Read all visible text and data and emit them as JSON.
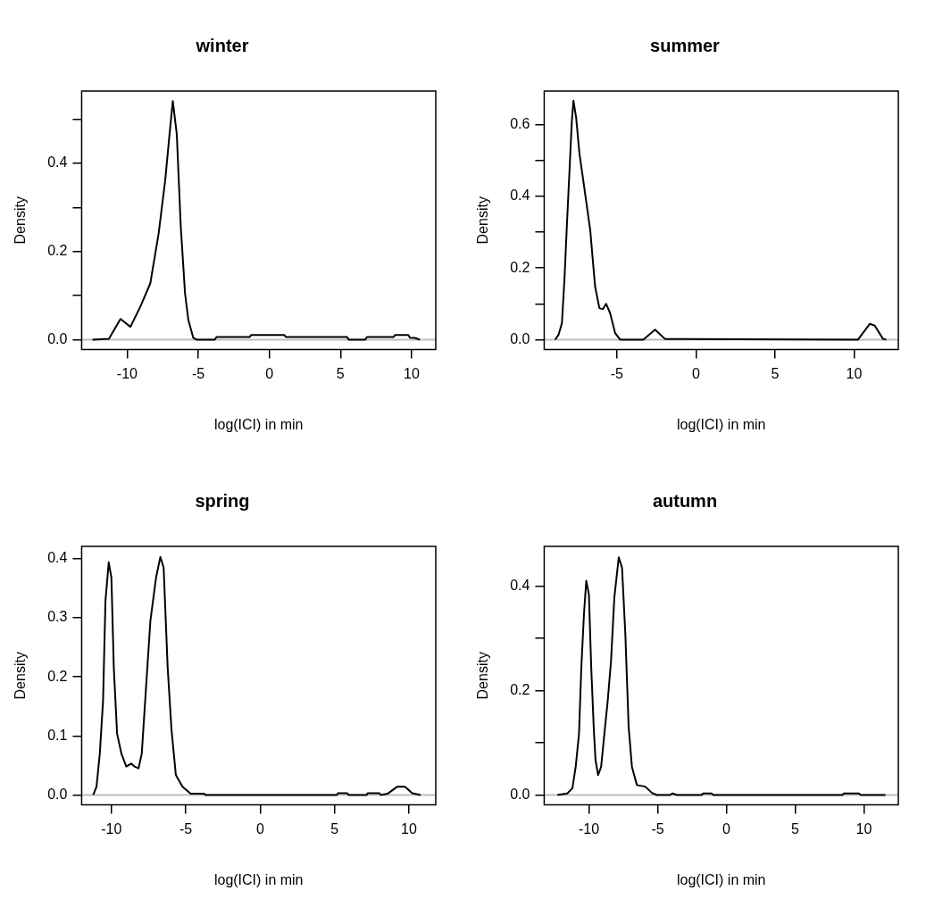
{
  "chart_data": [
    {
      "type": "line",
      "title": "winter",
      "xlabel": "log(ICI) in min",
      "ylabel": "Density",
      "color": "#000000",
      "x": [
        -12.44,
        -11.28,
        -10.47,
        -9.77,
        -9.07,
        -8.37,
        -7.79,
        -7.33,
        -7.02,
        -6.79,
        -6.51,
        -6.23,
        -5.93,
        -5.7,
        -5.35,
        -5.12,
        -3.84,
        -3.72,
        -1.4,
        -1.28,
        1.05,
        1.16,
        5.47,
        5.58,
        6.74,
        6.86,
        8.72,
        8.84,
        9.77,
        9.88,
        10.23,
        10.58
      ],
      "values": [
        0,
        0.002,
        0.047,
        0.029,
        0.075,
        0.128,
        0.24,
        0.36,
        0.466,
        0.541,
        0.466,
        0.256,
        0.105,
        0.045,
        0.004,
        0,
        0,
        0.006,
        0.006,
        0.0105,
        0.0105,
        0.006,
        0.006,
        0,
        0,
        0.006,
        0.006,
        0.0105,
        0.0105,
        0.0045,
        0.004,
        0
      ],
      "xlim": [
        -13.2,
        11.7
      ],
      "ylim": [
        -0.0226,
        0.564
      ],
      "xticks": [
        -10,
        -5,
        0,
        5,
        10
      ],
      "yticks": [
        {
          "value": 0,
          "label": "0.0"
        },
        {
          "value": 0.1,
          "label": null
        },
        {
          "value": 0.2,
          "label": "0.2"
        },
        {
          "value": 0.3,
          "label": null
        },
        {
          "value": 0.4,
          "label": "0.4"
        },
        {
          "value": 0.5,
          "label": null
        }
      ],
      "ref_lines": [
        {
          "axis": "y",
          "value": 0,
          "color": "#bebebe"
        }
      ]
    },
    {
      "type": "line",
      "title": "summer",
      "xlabel": "log(ICI) in min",
      "ylabel": "Density",
      "color": "#000000",
      "x": [
        -8.91,
        -8.69,
        -8.48,
        -8.32,
        -8.17,
        -8.0,
        -7.85,
        -7.75,
        -7.58,
        -7.37,
        -7.01,
        -6.69,
        -6.38,
        -6.11,
        -5.89,
        -5.68,
        -5.43,
        -5.12,
        -4.8,
        -3.33,
        -2.59,
        -1.96,
        10.25,
        10.99,
        11.31,
        11.83,
        12.04
      ],
      "values": [
        0,
        0.014,
        0.046,
        0.167,
        0.315,
        0.472,
        0.611,
        0.667,
        0.62,
        0.519,
        0.407,
        0.306,
        0.148,
        0.088,
        0.085,
        0.1,
        0.074,
        0.019,
        0,
        0,
        0.028,
        0.002,
        0,
        0.044,
        0.039,
        0.002,
        0
      ],
      "xlim": [
        -9.6,
        12.8
      ],
      "ylim": [
        -0.0278,
        0.694
      ],
      "xticks": [
        -5,
        0,
        5,
        10
      ],
      "yticks": [
        {
          "value": 0,
          "label": "0.0"
        },
        {
          "value": 0.1,
          "label": null
        },
        {
          "value": 0.2,
          "label": "0.2"
        },
        {
          "value": 0.3,
          "label": null
        },
        {
          "value": 0.4,
          "label": "0.4"
        },
        {
          "value": 0.5,
          "label": null
        },
        {
          "value": 0.6,
          "label": "0.6"
        }
      ],
      "ref_lines": [
        {
          "axis": "y",
          "value": 0,
          "color": "#bebebe"
        }
      ]
    },
    {
      "type": "line",
      "title": "spring",
      "xlabel": "log(ICI) in min",
      "ylabel": "Density",
      "color": "#000000",
      "x": [
        -11.22,
        -11.0,
        -10.78,
        -10.56,
        -10.4,
        -10.18,
        -10.0,
        -9.84,
        -9.62,
        -9.33,
        -9.0,
        -8.67,
        -8.44,
        -8.18,
        -7.96,
        -7.67,
        -7.38,
        -7.0,
        -6.71,
        -6.49,
        -6.22,
        -5.96,
        -5.67,
        -5.22,
        -4.67,
        -3.78,
        -3.67,
        5.16,
        5.22,
        5.84,
        5.96,
        7.16,
        7.22,
        8.0,
        8.11,
        8.56,
        9.22,
        9.73,
        10.22,
        10.78
      ],
      "values": [
        0,
        0.014,
        0.07,
        0.16,
        0.329,
        0.394,
        0.368,
        0.216,
        0.104,
        0.07,
        0.048,
        0.053,
        0.048,
        0.045,
        0.07,
        0.183,
        0.295,
        0.368,
        0.403,
        0.385,
        0.216,
        0.11,
        0.034,
        0.014,
        0.002,
        0.002,
        0,
        0,
        0.003,
        0.003,
        0,
        0,
        0.003,
        0.003,
        0,
        0.002,
        0.014,
        0.014,
        0.003,
        0
      ],
      "xlim": [
        -12,
        11.8
      ],
      "ylim": [
        -0.0169,
        0.421
      ],
      "xticks": [
        -10,
        -5,
        0,
        5,
        10
      ],
      "yticks": [
        {
          "value": 0,
          "label": "0.0"
        },
        {
          "value": 0.1,
          "label": "0.1"
        },
        {
          "value": 0.2,
          "label": "0.2"
        },
        {
          "value": 0.3,
          "label": "0.3"
        },
        {
          "value": 0.4,
          "label": "0.4"
        }
      ],
      "ref_lines": [
        {
          "axis": "y",
          "value": 0,
          "color": "#bebebe"
        }
      ]
    },
    {
      "type": "line",
      "title": "autumn",
      "xlabel": "log(ICI) in min",
      "ylabel": "Density",
      "color": "#000000",
      "x": [
        -12.29,
        -11.57,
        -11.2,
        -10.96,
        -10.72,
        -10.55,
        -10.36,
        -10.19,
        -10.0,
        -9.83,
        -9.64,
        -9.52,
        -9.33,
        -9.11,
        -8.92,
        -8.63,
        -8.39,
        -8.15,
        -7.83,
        -7.59,
        -7.35,
        -7.11,
        -6.87,
        -6.51,
        -5.9,
        -5.42,
        -5.06,
        -4.1,
        -3.9,
        -3.61,
        -1.81,
        -1.69,
        -1.08,
        -0.96,
        8.43,
        8.55,
        9.64,
        9.76,
        11.57
      ],
      "values": [
        0,
        0.003,
        0.013,
        0.054,
        0.117,
        0.244,
        0.346,
        0.41,
        0.384,
        0.244,
        0.124,
        0.067,
        0.038,
        0.054,
        0.105,
        0.181,
        0.257,
        0.378,
        0.455,
        0.435,
        0.308,
        0.13,
        0.054,
        0.019,
        0.016,
        0.004,
        0,
        0,
        0.003,
        0,
        0,
        0.003,
        0.003,
        0,
        0,
        0.003,
        0.003,
        0,
        0
      ],
      "xlim": [
        -13.25,
        12.5
      ],
      "ylim": [
        -0.019,
        0.476
      ],
      "xticks": [
        -10,
        -5,
        0,
        5,
        10
      ],
      "yticks": [
        {
          "value": 0,
          "label": "0.0"
        },
        {
          "value": 0.1,
          "label": null
        },
        {
          "value": 0.2,
          "label": "0.2"
        },
        {
          "value": 0.3,
          "label": null
        },
        {
          "value": 0.4,
          "label": "0.4"
        }
      ],
      "ref_lines": [
        {
          "axis": "y",
          "value": 0,
          "color": "#bebebe"
        }
      ]
    }
  ]
}
